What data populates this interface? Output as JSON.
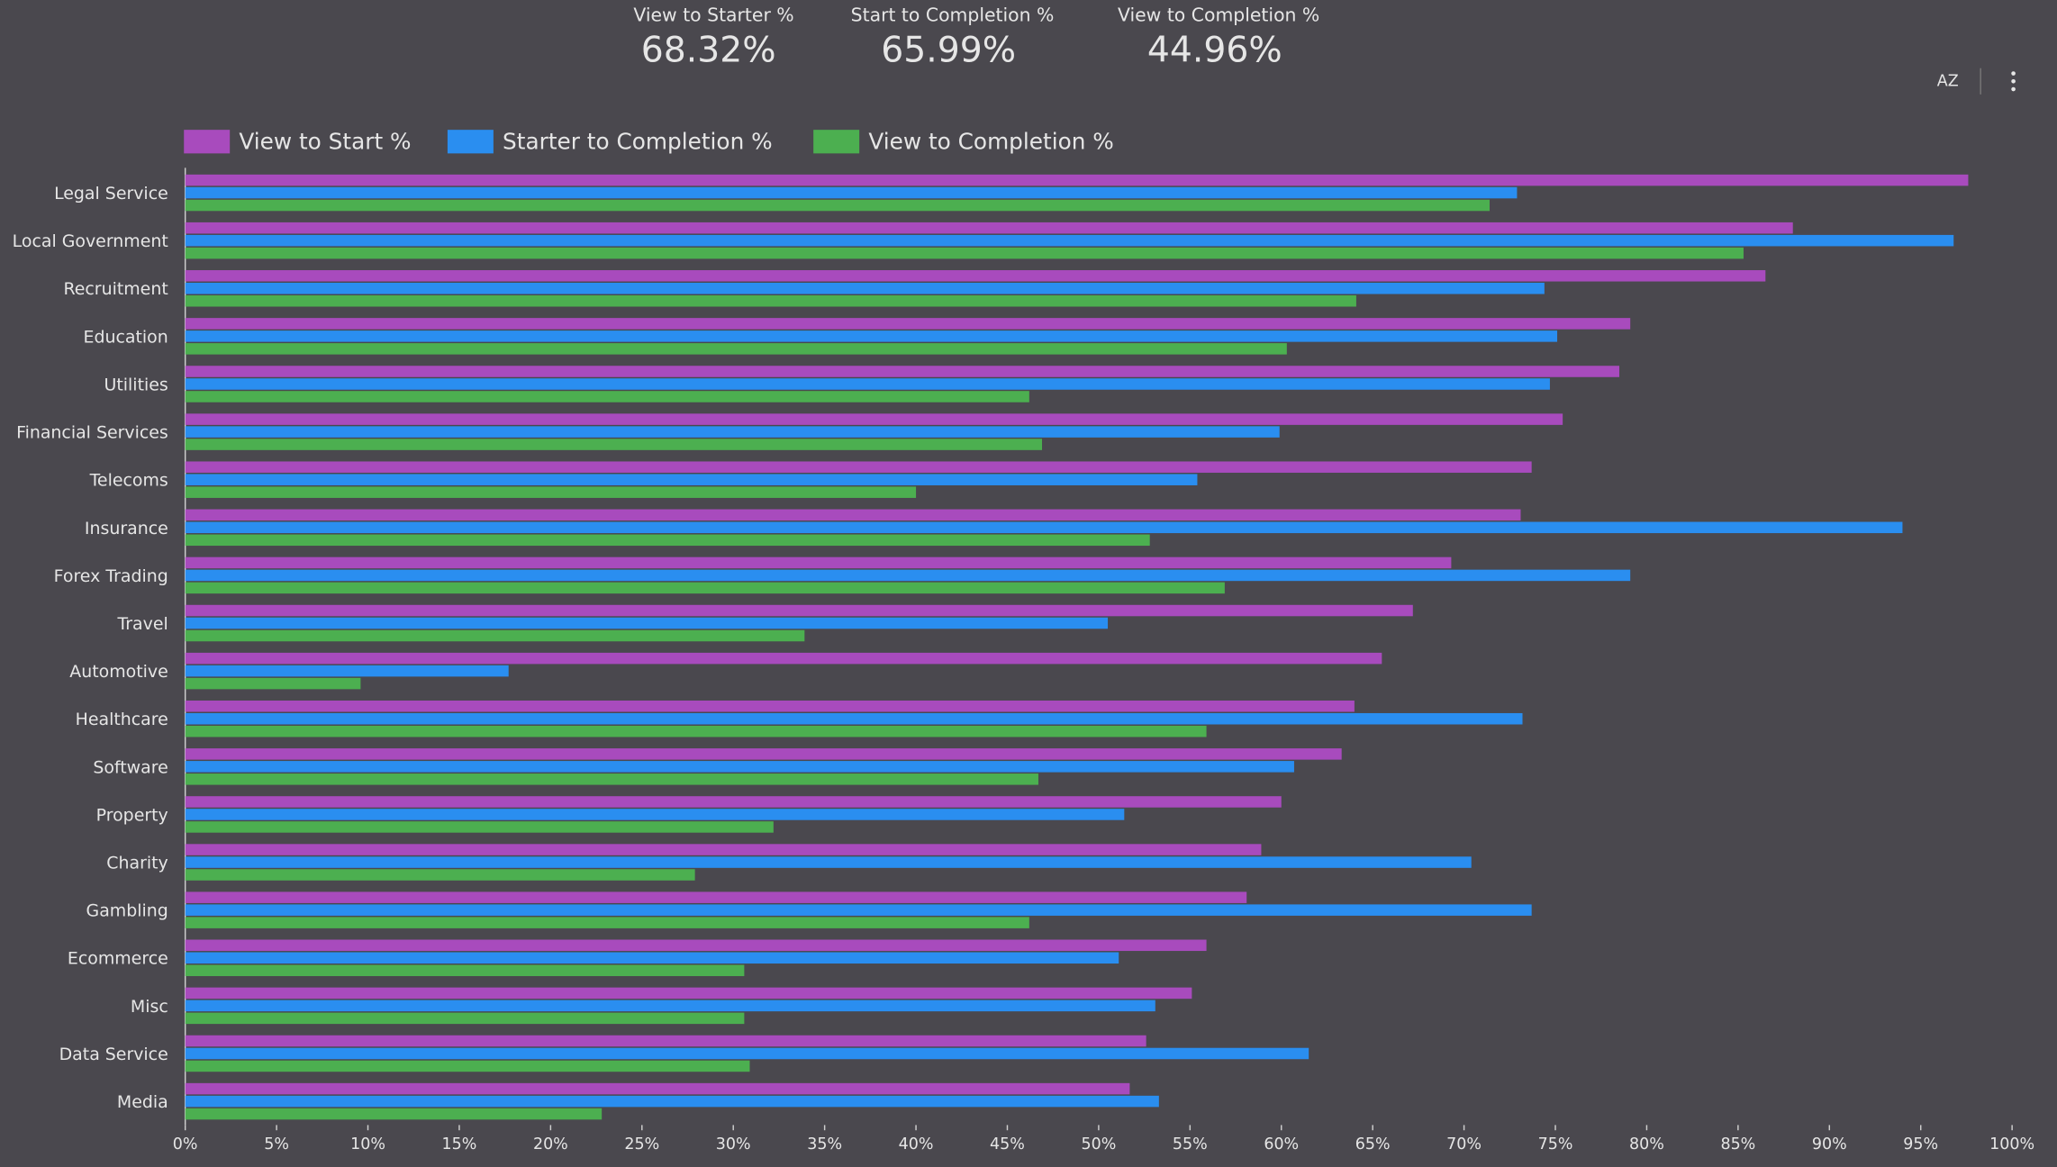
{
  "kpis": [
    {
      "label": "View to Starter %",
      "value": "68.32%"
    },
    {
      "label": "Start to Completion %",
      "value": "65.99%"
    },
    {
      "label": "View to Completion %",
      "value": "44.96%"
    }
  ],
  "toolbar": {
    "sort_label": "AZ"
  },
  "chart_data": {
    "type": "hbar",
    "categories": [
      "Legal Service",
      "Local Government",
      "Recruitment",
      "Education",
      "Utilities",
      "Financial Services",
      "Telecoms",
      "Insurance",
      "Forex Trading",
      "Travel",
      "Automotive",
      "Healthcare",
      "Software",
      "Property",
      "Charity",
      "Gambling",
      "Ecommerce",
      "Misc",
      "Data Service",
      "Media"
    ],
    "series": [
      {
        "name": "View to Start %",
        "color": "#a84bbd",
        "values": [
          97.6,
          88.0,
          86.5,
          79.1,
          78.5,
          75.4,
          73.7,
          73.1,
          69.3,
          67.2,
          65.5,
          64.0,
          63.3,
          60.0,
          58.9,
          58.1,
          55.9,
          55.1,
          52.6,
          51.7
        ]
      },
      {
        "name": "Starter to Completion %",
        "color": "#2a8ef0",
        "values": [
          72.9,
          96.8,
          74.4,
          75.1,
          74.7,
          59.9,
          55.4,
          94.0,
          79.1,
          50.5,
          17.7,
          73.2,
          60.7,
          51.4,
          70.4,
          73.7,
          51.1,
          53.1,
          61.5,
          53.3
        ]
      },
      {
        "name": "View to Completion %",
        "color": "#4caf50",
        "values": [
          71.4,
          85.3,
          64.1,
          60.3,
          46.2,
          46.9,
          40.0,
          52.8,
          56.9,
          33.9,
          9.6,
          55.9,
          46.7,
          32.2,
          27.9,
          46.2,
          30.6,
          30.6,
          30.9,
          22.8
        ]
      }
    ],
    "xlim": [
      0,
      100
    ],
    "xticks": [
      {
        "value": 0,
        "label": "0%"
      },
      {
        "value": 5,
        "label": "5%"
      },
      {
        "value": 10,
        "label": "10%"
      },
      {
        "value": 15,
        "label": "15%"
      },
      {
        "value": 20,
        "label": "20%"
      },
      {
        "value": 25,
        "label": "25%"
      },
      {
        "value": 30,
        "label": "30%"
      },
      {
        "value": 35,
        "label": "35%"
      },
      {
        "value": 40,
        "label": "40%"
      },
      {
        "value": 45,
        "label": "45%"
      },
      {
        "value": 50,
        "label": "50%"
      },
      {
        "value": 55,
        "label": "55%"
      },
      {
        "value": 60,
        "label": "60%"
      },
      {
        "value": 65,
        "label": "65%"
      },
      {
        "value": 70,
        "label": "70%"
      },
      {
        "value": 75,
        "label": "75%"
      },
      {
        "value": 80,
        "label": "80%"
      },
      {
        "value": 85,
        "label": "85%"
      },
      {
        "value": 90,
        "label": "90%"
      },
      {
        "value": 95,
        "label": "95%"
      },
      {
        "value": 100,
        "label": "100%"
      }
    ],
    "legend": "top-left"
  }
}
